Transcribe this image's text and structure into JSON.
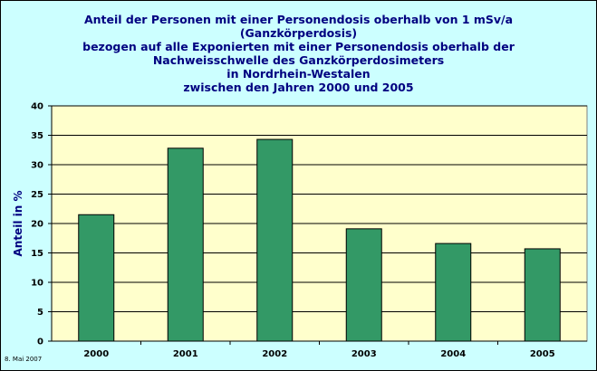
{
  "title_lines": [
    "Anteil der Personen mit einer Personendosis oberhalb von 1 mSv/a",
    "(Ganzkörperdosis)",
    "bezogen auf alle Exponierten mit einer Personendosis oberhalb der",
    "Nachweisschwelle des Ganzkörperdosimeters",
    "in Nordrhein-Westalen",
    "zwischen den Jahren 2000 und 2005"
  ],
  "footer_date": "8. Mai 2007",
  "chart_data": {
    "type": "bar",
    "categories": [
      "2000",
      "2001",
      "2002",
      "2003",
      "2004",
      "2005"
    ],
    "values": [
      21.5,
      32.8,
      34.3,
      19.1,
      16.6,
      15.7
    ],
    "ylabel": "Anteil in %",
    "xlabel": "",
    "ylim": [
      0,
      40
    ],
    "yticks": [
      "0",
      "5",
      "10",
      "15",
      "20",
      "25",
      "30",
      "35",
      "40"
    ],
    "grid": true,
    "legend": "none",
    "colors": {
      "bar": "#339966",
      "plot_background": "#ffffcc",
      "chart_background": "#ccffff",
      "title": "#000080",
      "gridline": "#000000"
    }
  }
}
